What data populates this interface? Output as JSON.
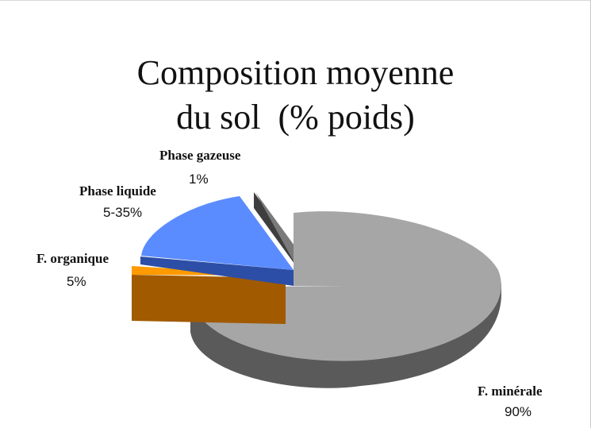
{
  "chart_data": {
    "type": "pie",
    "title_lines": [
      "Composition moyenne",
      "du sol  (% poids)"
    ],
    "slices": [
      {
        "label": "F. minérale",
        "value_label": "90%",
        "color": "#a6a6a6",
        "side_color": "#5a5a5a"
      },
      {
        "label": "F. organique",
        "value_label": "5%",
        "color": "#ff9a00",
        "side_color": "#a15a00"
      },
      {
        "label": "Phase liquide",
        "value_label": "5-35%",
        "color": "#5b8cff",
        "side_color": "#2c4ea6"
      },
      {
        "label": "Phase gazeuse",
        "value_label": "1%",
        "color": "#7a7a7a",
        "side_color": "#4a4a4a"
      }
    ],
    "style": "3d-exploded"
  }
}
